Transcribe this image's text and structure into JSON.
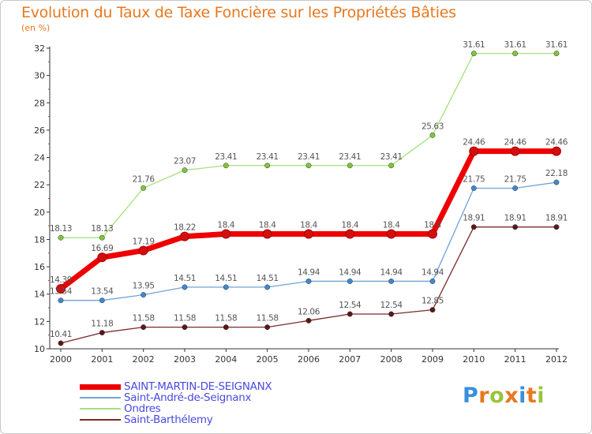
{
  "title": "Evolution du Taux de Taxe Foncière sur les Propriétés Bâties",
  "unit": "(en %)",
  "brand": {
    "letters": [
      "P",
      "r",
      "o",
      "x",
      "i",
      "t",
      "i"
    ],
    "colors": [
      "#3a8fd8",
      "#e8781e",
      "#9ac43a",
      "#e8781e",
      "#3a8fd8",
      "#e8781e",
      "#9ac43a"
    ]
  },
  "chart_data": {
    "type": "line",
    "title": "Evolution du Taux de Taxe Foncière sur les Propriétés Bâties",
    "ylabel": "(en %)",
    "xlabel": "",
    "ylim": [
      10,
      32
    ],
    "yticks": [
      10,
      12,
      14,
      16,
      18,
      20,
      22,
      24,
      26,
      28,
      30,
      32
    ],
    "x": [
      "2000",
      "2001",
      "2002",
      "2003",
      "2004",
      "2005",
      "2006",
      "2007",
      "2008",
      "2009",
      "2010",
      "2011",
      "2012"
    ],
    "series": [
      {
        "name": "SAINT-MARTIN-DE-SEIGNANX",
        "color": "#ee0000",
        "marker": "#d01010",
        "width": 7,
        "values": [
          14.39,
          16.69,
          17.19,
          18.22,
          18.4,
          18.4,
          18.4,
          18.4,
          18.4,
          18.4,
          24.46,
          24.46,
          24.46
        ],
        "labels": [
          "14.39",
          "16.69",
          "17.19",
          "18.22",
          "18.4",
          "18.4",
          "18.4",
          "18.4",
          "18.4",
          "18.4",
          "24.46",
          "24.46",
          "24.46"
        ]
      },
      {
        "name": "Saint-André-de-Seignanx",
        "color": "#6fa3d6",
        "marker": "#3f88cf",
        "width": 1.3,
        "values": [
          13.54,
          13.54,
          13.95,
          14.51,
          14.51,
          14.51,
          14.94,
          14.94,
          14.94,
          14.94,
          21.75,
          21.75,
          22.18
        ],
        "labels": [
          "13.54",
          "13.54",
          "13.95",
          "14.51",
          "14.51",
          "14.51",
          "14.94",
          "14.94",
          "14.94",
          "14.94",
          "21.75",
          "21.75",
          "22.18"
        ]
      },
      {
        "name": "Ondres",
        "color": "#a8e07a",
        "marker": "#7cc83a",
        "width": 1.3,
        "values": [
          18.13,
          18.13,
          21.76,
          23.07,
          23.41,
          23.41,
          23.41,
          23.41,
          23.41,
          25.63,
          31.61,
          31.61,
          31.61
        ],
        "labels": [
          "18.13",
          "18.13",
          "21.76",
          "23.07",
          "23.41",
          "23.41",
          "23.41",
          "23.41",
          "23.41",
          "25.63",
          "31.61",
          "31.61",
          "31.61"
        ]
      },
      {
        "name": "Saint-Barthélemy",
        "color": "#7a2a2a",
        "marker": "#5e1616",
        "width": 1.3,
        "values": [
          10.41,
          11.18,
          11.58,
          11.58,
          11.58,
          11.58,
          12.06,
          12.54,
          12.54,
          12.85,
          18.91,
          18.91,
          18.91
        ],
        "labels": [
          "10.41",
          "11.18",
          "11.58",
          "11.58",
          "11.58",
          "11.58",
          "12.06",
          "12.54",
          "12.54",
          "12.85",
          "18.91",
          "18.91",
          "18.91"
        ]
      }
    ],
    "grid": false,
    "legend": "bottom-left"
  }
}
